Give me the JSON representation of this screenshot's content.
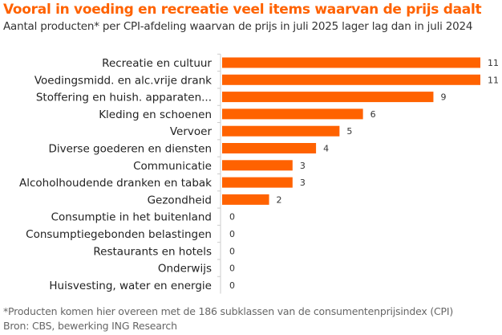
{
  "chart_data": {
    "type": "bar",
    "orientation": "horizontal",
    "title": "Vooral in voeding en recreatie veel items waarvan de prijs daalt",
    "subtitle": "Aantal producten* per CPI-afdeling waarvan de prijs in juli 2025 lager lag dan in juli 2024",
    "categories": [
      "Recreatie en cultuur",
      "Voedingsmidd. en alc.vrije drank",
      "Stoffering en huish. apparaten...",
      "Kleding en schoenen",
      "Vervoer",
      "Diverse goederen en diensten",
      "Communicatie",
      "Alcoholhoudende dranken en tabak",
      "Gezondheid",
      "Consumptie in het buitenland",
      "Consumptiegebonden belastingen",
      "Restaurants en hotels",
      "Onderwijs",
      "Huisvesting, water en energie"
    ],
    "values": [
      11,
      11,
      9,
      6,
      5,
      4,
      3,
      3,
      2,
      0,
      0,
      0,
      0,
      0
    ],
    "xlim": [
      0,
      11
    ],
    "grid": false,
    "bar_color": "#FF6200",
    "title_color": "#FF6200"
  },
  "footnotes": [
    "*Producten komen hier overeen met de 186 subklassen van de consumentenprijsindex (CPI)",
    "Bron: CBS, bewerking ING Research"
  ]
}
